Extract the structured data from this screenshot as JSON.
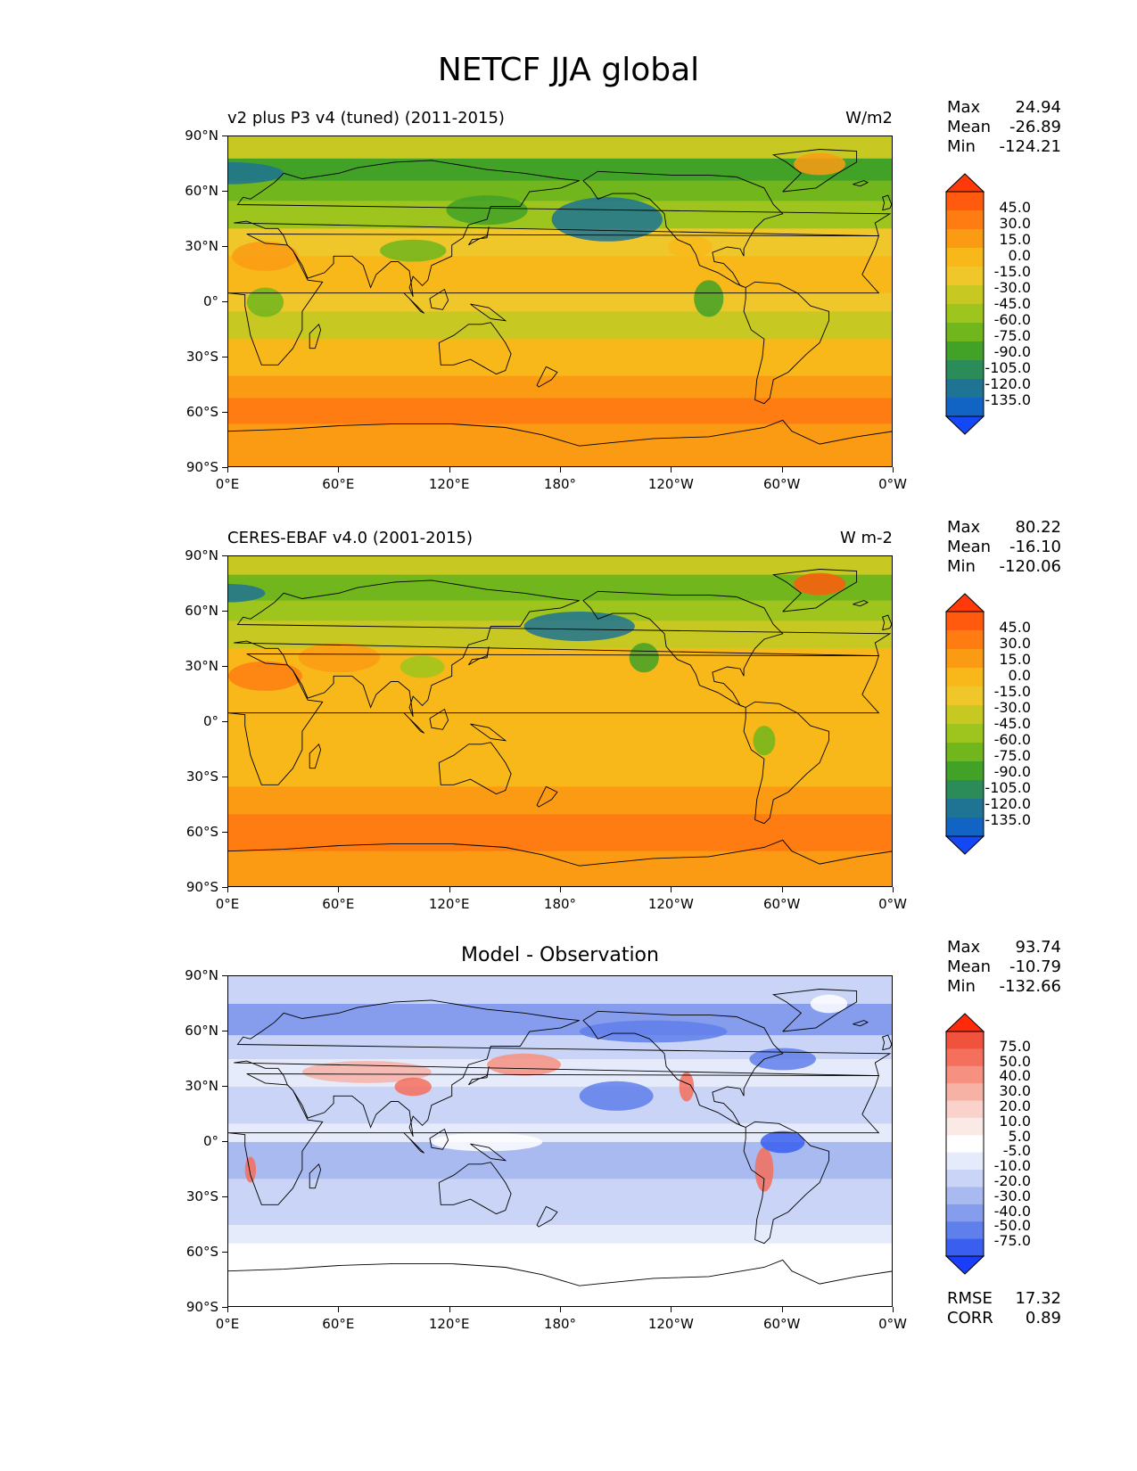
{
  "title": "NETCF JJA global",
  "x_ticks": [
    "0°E",
    "60°E",
    "120°E",
    "180°",
    "120°W",
    "60°W",
    "0°W"
  ],
  "y_ticks": [
    "90°N",
    "60°N",
    "30°N",
    "0°",
    "30°S",
    "60°S",
    "90°S"
  ],
  "panels": [
    {
      "left_title": "v2 plus P3 v4 (tuned) (2011-2015)",
      "right_title": "W/m2",
      "center_title": "",
      "stats": [
        [
          "Max",
          "24.94"
        ],
        [
          "Mean",
          "-26.89"
        ],
        [
          "Min",
          "-124.21"
        ]
      ],
      "levels": [
        "45.0",
        "30.0",
        "15.0",
        "0.0",
        "-15.0",
        "-30.0",
        "-45.0",
        "-60.0",
        "-75.0",
        "-90.0",
        "-105.0",
        "-120.0",
        "-135.0"
      ],
      "colorbar_colors": [
        "#ff3a0a",
        "#ff5a0e",
        "#ff7c13",
        "#fb9b14",
        "#f8b81a",
        "#f0c72a",
        "#c8c823",
        "#9dc51d",
        "#70b61c",
        "#42a127",
        "#2b8c5a",
        "#1f7393",
        "#1264c4",
        "#1448f7"
      ],
      "map_style": "model"
    },
    {
      "left_title": "CERES-EBAF v4.0 (2001-2015)",
      "right_title": "W m-2",
      "center_title": "",
      "stats": [
        [
          "Max",
          "80.22"
        ],
        [
          "Mean",
          "-16.10"
        ],
        [
          "Min",
          "-120.06"
        ]
      ],
      "levels": [
        "45.0",
        "30.0",
        "15.0",
        "0.0",
        "-15.0",
        "-30.0",
        "-45.0",
        "-60.0",
        "-75.0",
        "-90.0",
        "-105.0",
        "-120.0",
        "-135.0"
      ],
      "colorbar_colors": [
        "#ff3a0a",
        "#ff5a0e",
        "#ff7c13",
        "#fb9b14",
        "#f8b81a",
        "#f0c72a",
        "#c8c823",
        "#9dc51d",
        "#70b61c",
        "#42a127",
        "#2b8c5a",
        "#1f7393",
        "#1264c4",
        "#1448f7"
      ],
      "map_style": "obs"
    },
    {
      "left_title": "",
      "right_title": "",
      "center_title": "Model - Observation",
      "stats": [
        [
          "Max",
          "93.74"
        ],
        [
          "Mean",
          "-10.79"
        ],
        [
          "Min",
          "-132.66"
        ]
      ],
      "levels": [
        "75.0",
        "50.0",
        "40.0",
        "30.0",
        "20.0",
        "10.0",
        "5.0",
        "-5.0",
        "-10.0",
        "-20.0",
        "-30.0",
        "-40.0",
        "-50.0",
        "-75.0"
      ],
      "colorbar_colors": [
        "#ff2a0a",
        "#f0523e",
        "#f46f5c",
        "#f69080",
        "#f7b2a6",
        "#f9d2cb",
        "#fbe9e6",
        "#ffffff",
        "#e6ebfb",
        "#c9d4f6",
        "#a9baf1",
        "#869ded",
        "#5f7fea",
        "#3a5ff0",
        "#1a3ef8"
      ],
      "map_style": "diff",
      "rmse": [
        "RMSE",
        "17.32"
      ],
      "corr": [
        "CORR",
        "0.89"
      ]
    }
  ]
}
